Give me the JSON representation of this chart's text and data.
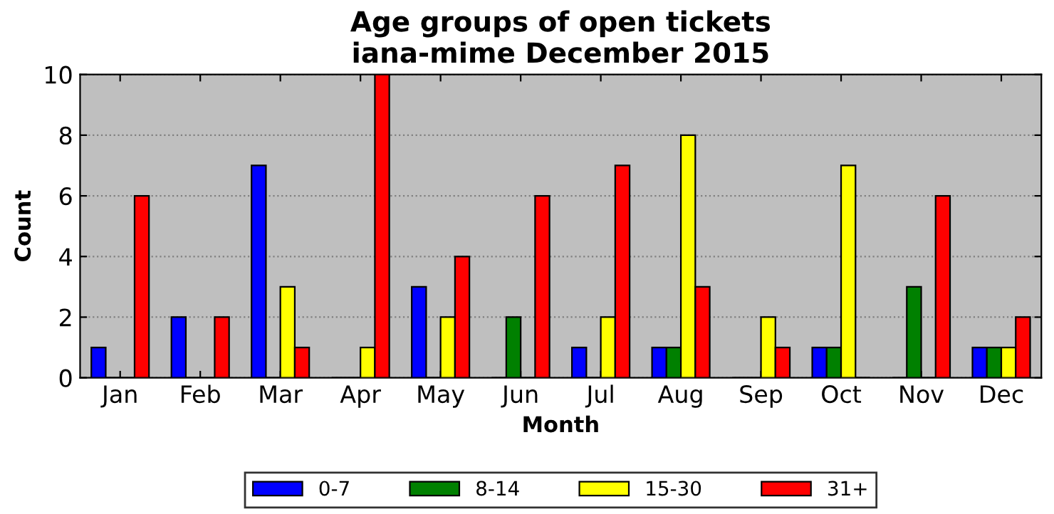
{
  "chart_data": {
    "type": "bar",
    "title": "Age groups of open tickets\niana-mime December 2015",
    "xlabel": "Month",
    "ylabel": "Count",
    "categories": [
      "Jan",
      "Feb",
      "Mar",
      "Apr",
      "May",
      "Jun",
      "Jul",
      "Aug",
      "Sep",
      "Oct",
      "Nov",
      "Dec"
    ],
    "series": [
      {
        "name": "0-7",
        "color": "#0000ff",
        "values": [
          1,
          2,
          7,
          0,
          3,
          0,
          1,
          1,
          0,
          1,
          0,
          1
        ]
      },
      {
        "name": "8-14",
        "color": "#008000",
        "values": [
          0,
          0,
          0,
          0,
          0,
          2,
          0,
          1,
          0,
          1,
          3,
          1
        ]
      },
      {
        "name": "15-30",
        "color": "#ffff00",
        "values": [
          0,
          0,
          3,
          1,
          2,
          0,
          2,
          8,
          2,
          7,
          0,
          1
        ]
      },
      {
        "name": "31+",
        "color": "#ff0000",
        "values": [
          6,
          2,
          1,
          10,
          4,
          6,
          7,
          3,
          1,
          0,
          6,
          2
        ]
      }
    ],
    "ylim": [
      0,
      10
    ],
    "yticks": [
      0,
      2,
      4,
      6,
      8,
      10
    ],
    "grid": "y",
    "legend": "bottom"
  }
}
